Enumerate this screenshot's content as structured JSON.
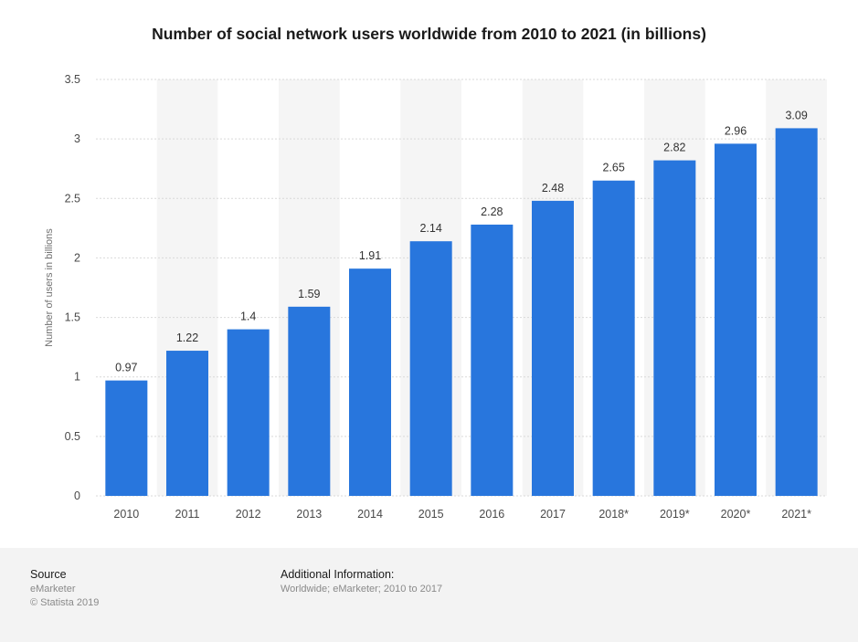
{
  "chart_data": {
    "type": "bar",
    "title": "Number of social network users worldwide from 2010 to 2021 (in billions)",
    "xlabel": "",
    "ylabel": "Number of users in billions",
    "categories": [
      "2010",
      "2011",
      "2012",
      "2013",
      "2014",
      "2015",
      "2016",
      "2017",
      "2018*",
      "2019*",
      "2020*",
      "2021*"
    ],
    "values": [
      0.97,
      1.22,
      1.4,
      1.59,
      1.91,
      2.14,
      2.28,
      2.48,
      2.65,
      2.82,
      2.96,
      3.09
    ],
    "value_labels": [
      "0.97",
      "1.22",
      "1.4",
      "1.59",
      "1.91",
      "2.14",
      "2.28",
      "2.48",
      "2.65",
      "2.82",
      "2.96",
      "3.09"
    ],
    "ylim": [
      0,
      3.5
    ],
    "yticks": [
      0,
      0.5,
      1,
      1.5,
      2,
      2.5,
      3,
      3.5
    ],
    "ytick_labels": [
      "0",
      "0.5",
      "1",
      "1.5",
      "2",
      "2.5",
      "3",
      "3.5"
    ],
    "grid": true,
    "legend": "none",
    "bar_color": "#2876dd"
  },
  "footer": {
    "source_title": "Source",
    "source_lines": [
      "eMarketer",
      "© Statista 2019"
    ],
    "additional_title": "Additional Information:",
    "additional_text": "Worldwide; eMarketer; 2010 to 2017"
  }
}
